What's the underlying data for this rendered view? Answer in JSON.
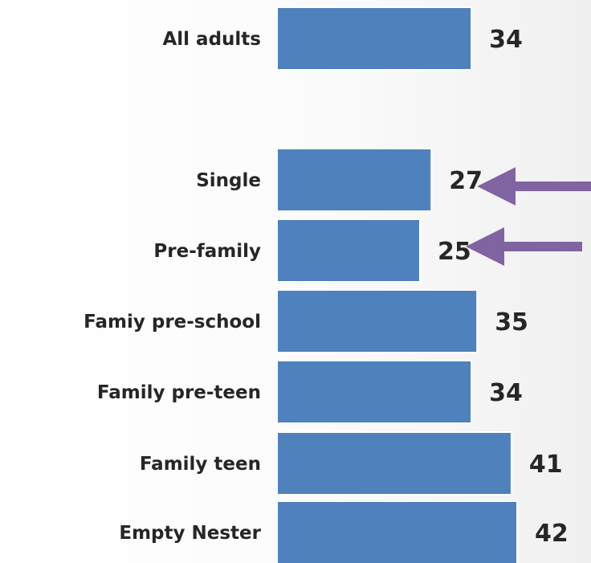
{
  "chart_data": {
    "type": "bar",
    "orientation": "horizontal",
    "categories": [
      "All adults",
      "Single",
      "Pre-family",
      "Famiy pre-school",
      "Family pre-teen",
      "Family teen",
      "Empty Nester"
    ],
    "values": [
      34,
      27,
      25,
      35,
      34,
      41,
      42
    ],
    "value_labels": [
      "34",
      "27",
      "25",
      "35",
      "34",
      "41",
      "42"
    ],
    "highlighted": [
      "Single",
      "Pre-family"
    ],
    "title": "",
    "xlabel": "",
    "ylabel": "",
    "xlim": [
      0,
      42
    ],
    "grid": false,
    "legend": "none",
    "colors": {
      "bar": "#4F81BD",
      "bar_edge": "#ffffff",
      "arrow": "#8064A2",
      "text": "#262626"
    }
  }
}
